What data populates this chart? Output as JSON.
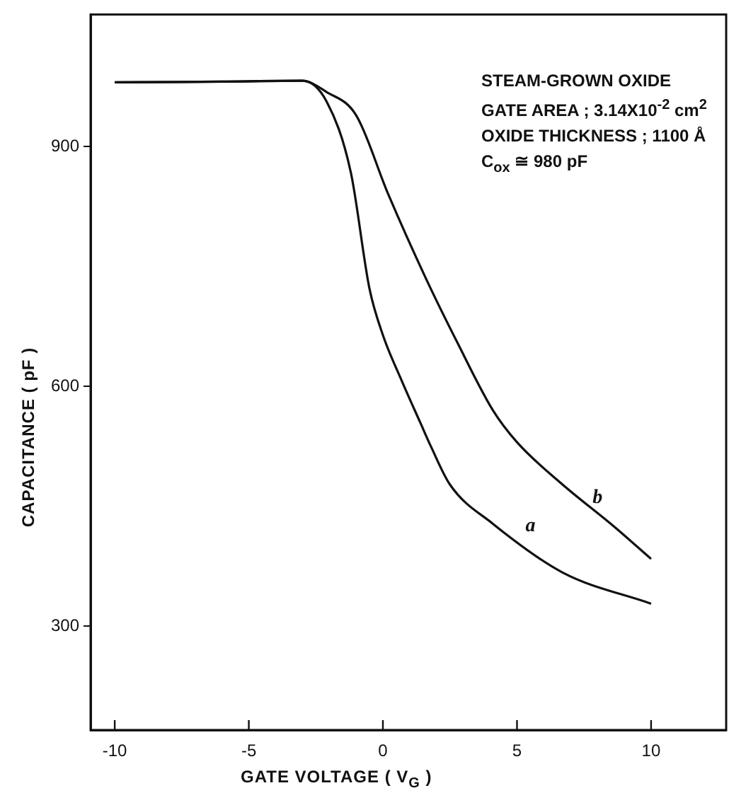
{
  "chart_data": {
    "type": "line",
    "xlabel": "GATE VOLTAGE  ( V$_{G}$ )",
    "ylabel": "CAPACITANCE  ( pF )",
    "xlim": [
      -10.9,
      12.8
    ],
    "ylim": [
      170,
      1065
    ],
    "xticks": [
      -10,
      -5,
      0,
      5,
      10
    ],
    "yticks": [
      300,
      600,
      900
    ],
    "grid": false,
    "legend": false,
    "marker": "none",
    "series": [
      {
        "name": "a",
        "color": "#111111",
        "x": [
          -10,
          -6,
          -3,
          -2.1,
          -1.2,
          -0.5,
          0,
          0.7,
          1.4,
          1.8,
          2.5,
          4.1,
          6.7,
          10
        ],
        "values": [
          980,
          981,
          982,
          956,
          868,
          722,
          664,
          607,
          554,
          524,
          477,
          428,
          367,
          328
        ]
      },
      {
        "name": "b",
        "color": "#111111",
        "x": [
          -10,
          -6,
          -3,
          -2.1,
          -1,
          0.2,
          1.6,
          2.8,
          4.1,
          5,
          6.7,
          8.6,
          10
        ],
        "values": [
          980,
          981,
          982,
          968,
          939,
          840,
          735,
          653,
          570,
          530,
          477,
          425,
          384
        ]
      }
    ],
    "annotations": [
      "STEAM-GROWN OXIDE",
      "GATE AREA ; 3.14X10$^{-2}$ cm$^{2}$",
      "OXIDE THICKNESS ; 1100 Å",
      "C$_{ox}$ ≅ 980 pF"
    ]
  }
}
